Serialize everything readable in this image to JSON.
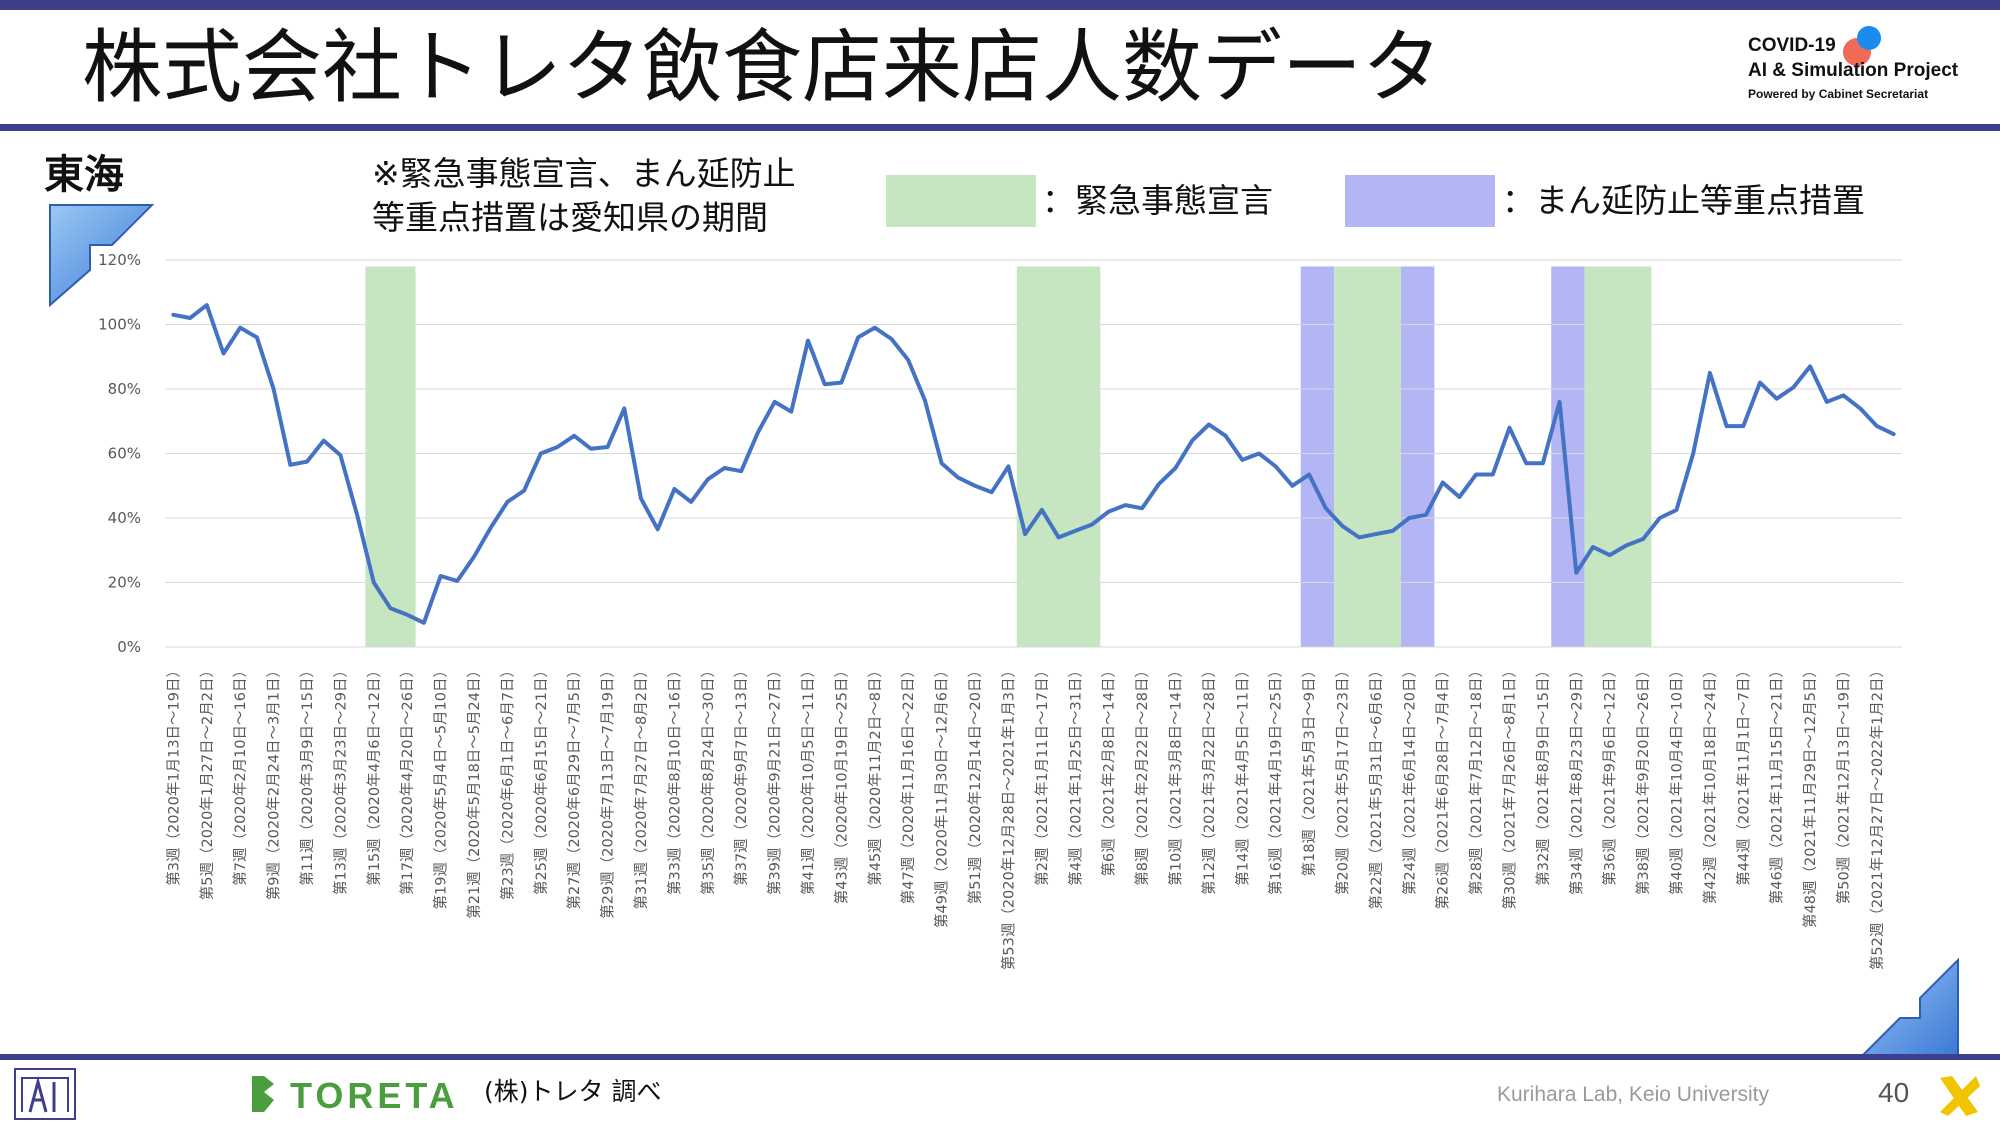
{
  "header": {
    "title": "株式会社トレタ飲食店来店人数データ",
    "project_logo": {
      "line1": "COVID-19",
      "line2": "AI & Simulation Project",
      "line3": "Powered by Cabinet Secretariat"
    }
  },
  "region_label": "東海",
  "note_lines": [
    "※緊急事態宣言、まん延防止",
    "等重点措置は愛知県の期間"
  ],
  "legend": [
    {
      "label": "：緊急事態宣言",
      "color": "#c6e6c2"
    },
    {
      "label": "：まん延防止等重点措置",
      "color": "#b3b5f4"
    }
  ],
  "footer": {
    "toreta_logo": "TORETA",
    "source": "(株)トレタ 調べ",
    "lab": "Kurihara Lab, Keio University",
    "page": "40"
  },
  "chart_data": {
    "type": "line",
    "ylim": [
      0,
      1.2
    ],
    "y_ticks": [
      "0%",
      "20%",
      "40%",
      "60%",
      "80%",
      "100%",
      "120%"
    ],
    "line_color": "#4472c4",
    "x_labels": [
      "第3週（2020年1月13日～19日）",
      "第5週（2020年1月27日～2月2日）",
      "第7週（2020年2月10日～16日）",
      "第9週（2020年2月24日～3月1日）",
      "第11週（2020年3月9日～15日）",
      "第13週（2020年3月23日～29日）",
      "第15週（2020年4月6日～12日）",
      "第17週（2020年4月20日～26日）",
      "第19週（2020年5月4日～5月10日）",
      "第21週（2020年5月18日～5月24日）",
      "第23週（2020年6月1日～6月7日）",
      "第25週（2020年6月15日～21日）",
      "第27週（2020年6月29日～7月5日）",
      "第29週（2020年7月13日～7月19日）",
      "第31週（2020年7月27日～8月2日）",
      "第33週（2020年8月10日～16日）",
      "第35週（2020年8月24日～30日）",
      "第37週（2020年9月7日～13日）",
      "第39週（2020年9月21日～27日）",
      "第41週（2020年10月5日～11日）",
      "第43週（2020年10月19日～25日）",
      "第45週（2020年11月2日～8日）",
      "第47週（2020年11月16日～22日）",
      "第49週（2020年11月30日～12月6日）",
      "第51週（2020年12月14日～20日）",
      "第53週（2020年12月28日～2021年1月3日）",
      "第2週（2021年1月11日～17日）",
      "第4週（2021年1月25日～31日）",
      "第6週（2021年2月8日～14日）",
      "第8週（2021年2月22日～28日）",
      "第10週（2021年3月8日～14日）",
      "第12週（2021年3月22日～28日）",
      "第14週（2021年4月5日～11日）",
      "第16週（2021年4月19日～25日）",
      "第18週（2021年5月3日～9日）",
      "第20週（2021年5月17日～23日）",
      "第22週（2021年5月31日～6月6日）",
      "第24週（2021年6月14日～20日）",
      "第26週（2021年6月28日～7月4日）",
      "第28週（2021年7月12日～18日）",
      "第30週（2021年7月26日～8月1日）",
      "第32週（2021年8月9日～15日）",
      "第34週（2021年8月23日～29日）",
      "第36週（2021年9月6日～12日）",
      "第38週（2021年9月20日～26日）",
      "第40週（2021年10月4日～10日）",
      "第42週（2021年10月18日～24日）",
      "第44週（2021年11月1日～7日）",
      "第46週（2021年11月15日～21日）",
      "第48週（2021年11月29日～12月5日）",
      "第50週（2021年12月13日～19日）",
      "第52週（2021年12月27日～2022年1月2日）"
    ],
    "values": [
      1.03,
      1.02,
      1.06,
      0.91,
      0.99,
      0.96,
      0.8,
      0.565,
      0.575,
      0.64,
      0.595,
      0.41,
      0.2,
      0.12,
      0.1,
      0.075,
      0.22,
      0.205,
      0.28,
      0.37,
      0.45,
      0.485,
      0.6,
      0.62,
      0.655,
      0.615,
      0.62,
      0.74,
      0.46,
      0.365,
      0.49,
      0.45,
      0.52,
      0.555,
      0.545,
      0.665,
      0.76,
      0.73,
      0.95,
      0.815,
      0.82,
      0.96,
      0.99,
      0.955,
      0.89,
      0.765,
      0.57,
      0.525,
      0.5,
      0.48,
      0.56,
      0.35,
      0.425,
      0.34,
      0.36,
      0.38,
      0.42,
      0.44,
      0.43,
      0.505,
      0.555,
      0.64,
      0.69,
      0.655,
      0.58,
      0.6,
      0.56,
      0.5,
      0.535,
      0.43,
      0.375,
      0.34,
      0.35,
      0.36,
      0.4,
      0.41,
      0.51,
      0.465,
      0.535,
      0.535,
      0.68,
      0.57,
      0.57,
      0.76,
      0.23,
      0.31,
      0.285,
      0.315,
      0.335,
      0.4,
      0.425,
      0.6,
      0.85,
      0.685,
      0.685,
      0.82,
      0.77,
      0.805,
      0.87,
      0.76,
      0.78,
      0.74,
      0.685,
      0.66
    ],
    "bands": [
      {
        "type": "emergency",
        "start": 12,
        "end": 15
      },
      {
        "type": "emergency",
        "start": 51,
        "end": 56
      },
      {
        "type": "priority",
        "start": 68,
        "end": 70
      },
      {
        "type": "emergency",
        "start": 70,
        "end": 74
      },
      {
        "type": "priority",
        "start": 74,
        "end": 76
      },
      {
        "type": "priority",
        "start": 83,
        "end": 85
      },
      {
        "type": "emergency",
        "start": 85,
        "end": 89
      }
    ],
    "band_colors": {
      "emergency": "#c6e6c2",
      "priority": "#b3b5f4"
    }
  }
}
